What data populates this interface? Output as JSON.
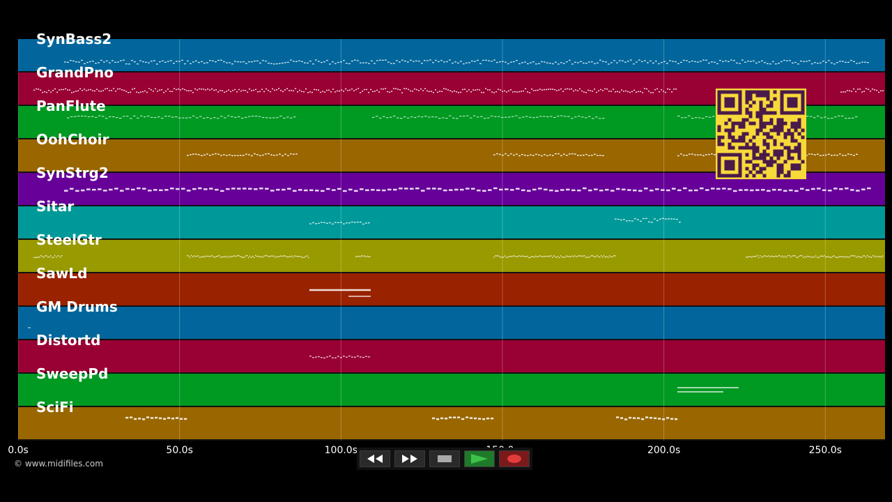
{
  "tracks": [
    {
      "name": "SynBass2",
      "color": "#02669c"
    },
    {
      "name": "GrandPno",
      "color": "#990033"
    },
    {
      "name": "PanFlute",
      "color": "#009922"
    },
    {
      "name": "OohChoir",
      "color": "#996600"
    },
    {
      "name": "SynStrg2",
      "color": "#660099"
    },
    {
      "name": "Sitar",
      "color": "#009999"
    },
    {
      "name": "SteelGtr",
      "color": "#999900"
    },
    {
      "name": "SawLd",
      "color": "#992200"
    },
    {
      "name": "GM Drums",
      "color": "#02669c"
    },
    {
      "name": "Distortd",
      "color": "#990033"
    },
    {
      "name": "SweepPd",
      "color": "#009922"
    },
    {
      "name": "SciFi",
      "color": "#996600"
    }
  ],
  "timeline": {
    "max_seconds": 268.5,
    "ticks": [
      {
        "label": "0.0s",
        "seconds": 0
      },
      {
        "label": "50.0s",
        "seconds": 50
      },
      {
        "label": "100.0s",
        "seconds": 100
      },
      {
        "label": "150.0s",
        "seconds": 150
      },
      {
        "label": "200.0s",
        "seconds": 200
      },
      {
        "label": "250.0s",
        "seconds": 250
      }
    ]
  },
  "copyright": "© www.midifiles.com",
  "transport": {
    "rewind_icon": "rewind-icon",
    "forward_icon": "fast-forward-icon",
    "stop_icon": "stop-icon",
    "play_icon": "play-icon",
    "record_icon": "record-icon",
    "play_color": "#3cc24a",
    "record_color": "#e23b3b"
  },
  "qr": {
    "fg": "#4a1a4a",
    "bg": "#f7d93a"
  }
}
